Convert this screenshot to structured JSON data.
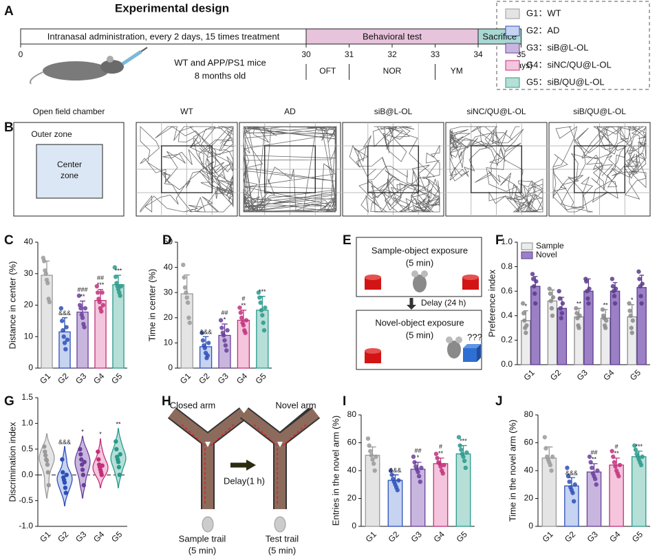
{
  "panel_labels": [
    "A",
    "B",
    "C",
    "D",
    "E",
    "F",
    "G",
    "H",
    "I",
    "J"
  ],
  "design": {
    "title": "Experimental design",
    "segments": [
      {
        "label": "Intranasal administration, every 2 days, 15 times treatment",
        "start": 0,
        "end": 30,
        "color": "#ffffff"
      },
      {
        "label": "Behavioral test",
        "start": 30,
        "end": 34,
        "color": "#e8c3dc"
      },
      {
        "label": "Sacrifice",
        "start": 34,
        "end": 35,
        "color": "#a9d8d3"
      }
    ],
    "ticks": [
      0,
      30,
      31,
      32,
      33,
      34,
      35
    ],
    "unit": "(days)",
    "tests": [
      {
        "label": "OFT",
        "start": 30,
        "end": 31
      },
      {
        "label": "NOR",
        "start": 31,
        "end": 33
      },
      {
        "label": "YM",
        "start": 33,
        "end": 34
      }
    ],
    "mice": [
      "WT and APP/PS1 mice",
      "8 months old"
    ]
  },
  "legend": {
    "entries": [
      {
        "label": "G1：WT",
        "color": "#e4e4e4",
        "edge": "#9a9a9a"
      },
      {
        "label": "G2：AD",
        "color": "#c6d3f1",
        "edge": "#2d4fb9"
      },
      {
        "label": "G3：siB@L-OL",
        "color": "#c8b6de",
        "edge": "#6a3e9b"
      },
      {
        "label": "G4：siNC/QU@L-OL",
        "color": "#f4c5dc",
        "edge": "#c1307b"
      },
      {
        "label": "G5：siB/QU@L-OL",
        "color": "#b5dfd7",
        "edge": "#2a998b"
      }
    ]
  },
  "open_field": {
    "chamber": "Open field chamber",
    "outer": "Outer zone",
    "center": [
      "Center",
      "zone"
    ],
    "arenas": [
      "WT",
      "AD",
      "siB@L-OL",
      "siNC/QU@L-OL",
      "siB/QU@L-OL"
    ]
  },
  "novel_object": {
    "sample": "Sample-object exposure",
    "sample_time": "(5 min)",
    "delay": "Delay (24 h)",
    "novel": "Novel-object exposure",
    "novel_time": "(5 min)",
    "question": "???"
  },
  "y_maze": {
    "closed": "Closed arm",
    "novel": "Novel arm",
    "delay": "Delay(1 h)",
    "sample": "Sample trail",
    "sample_time": "(5 min)",
    "test": "Test trail",
    "test_time": "(5 min)"
  },
  "chart_data": [
    {
      "type": "bar",
      "panel": "C",
      "ylabel": "Distance in center (%)",
      "categories": [
        "G1",
        "G2",
        "G3",
        "G4",
        "G5"
      ],
      "values": [
        29.5,
        11.5,
        17.8,
        21.5,
        26.5
      ],
      "errors": [
        4.5,
        4.5,
        3.5,
        3.5,
        3
      ],
      "points": [
        [
          35,
          34,
          31,
          30,
          28,
          27,
          22,
          21
        ],
        [
          19,
          15,
          12,
          10,
          8,
          6,
          13,
          9
        ],
        [
          23,
          20,
          19,
          17,
          16,
          14,
          13,
          19
        ],
        [
          26,
          24,
          22,
          21,
          19,
          18,
          24,
          20
        ],
        [
          32,
          29,
          27,
          26,
          25,
          24,
          23,
          26
        ]
      ],
      "annotations": [
        [],
        [
          "&&&"
        ],
        [
          "###",
          "**"
        ],
        [
          "##",
          "***"
        ],
        [
          "***"
        ]
      ],
      "ylim": [
        0,
        40
      ],
      "yticks": [
        0,
        10,
        20,
        30,
        40
      ]
    },
    {
      "type": "bar",
      "panel": "D",
      "ylabel": "Time in center (%)",
      "categories": [
        "G1",
        "G2",
        "G3",
        "G4",
        "G5"
      ],
      "values": [
        29.5,
        8.5,
        13,
        19,
        23
      ],
      "errors": [
        7.5,
        4,
        4.5,
        4,
        5.5
      ],
      "points": [
        [
          41,
          36,
          32,
          30,
          28,
          26,
          20,
          18
        ],
        [
          14,
          11,
          9,
          8,
          6,
          4,
          5,
          10
        ],
        [
          19,
          16,
          14,
          13,
          11,
          9,
          7,
          15
        ],
        [
          24,
          22,
          20,
          18,
          17,
          15,
          14,
          19
        ],
        [
          30,
          28,
          26,
          23,
          21,
          18,
          15,
          24
        ]
      ],
      "annotations": [
        [],
        [
          "&&&"
        ],
        [
          "##",
          "*"
        ],
        [
          "#",
          "**"
        ],
        [
          "***"
        ]
      ],
      "ylim": [
        0,
        50
      ],
      "yticks": [
        0,
        10,
        20,
        30,
        40,
        50
      ]
    },
    {
      "type": "grouped_bar",
      "panel": "F",
      "ylabel": "Preference index",
      "categories": [
        "G1",
        "G2",
        "G3",
        "G4",
        "G5"
      ],
      "legend": "upper left",
      "series": [
        {
          "name": "Sample",
          "color": "#ececec",
          "edge": "#8a8a8a",
          "values": [
            0.36,
            0.52,
            0.39,
            0.38,
            0.39
          ],
          "errors": [
            0.08,
            0.09,
            0.07,
            0.07,
            0.1
          ],
          "points": [
            [
              0.5,
              0.42,
              0.36,
              0.3,
              0.26,
              0.32
            ],
            [
              0.62,
              0.58,
              0.52,
              0.46,
              0.4,
              0.55
            ],
            [
              0.46,
              0.42,
              0.38,
              0.32,
              0.3,
              0.4
            ],
            [
              0.45,
              0.4,
              0.38,
              0.32,
              0.3,
              0.36
            ],
            [
              0.5,
              0.44,
              0.4,
              0.3,
              0.26,
              0.36
            ]
          ],
          "annotations": [
            [
              "*"
            ],
            [],
            [
              "**"
            ],
            [
              "**"
            ],
            [
              "*"
            ]
          ]
        },
        {
          "name": "Novel",
          "color": "#9c80c6",
          "edge": "#5a3a8d",
          "values": [
            0.64,
            0.46,
            0.6,
            0.6,
            0.63
          ],
          "errors": [
            0.08,
            0.09,
            0.1,
            0.07,
            0.1
          ],
          "points": [
            [
              0.74,
              0.7,
              0.64,
              0.58,
              0.5,
              0.68
            ],
            [
              0.6,
              0.54,
              0.46,
              0.38,
              0.42,
              0.5
            ],
            [
              0.7,
              0.68,
              0.6,
              0.54,
              0.5,
              0.62
            ],
            [
              0.7,
              0.64,
              0.6,
              0.56,
              0.5,
              0.62
            ],
            [
              0.76,
              0.7,
              0.64,
              0.56,
              0.5,
              0.66
            ]
          ],
          "annotations": [
            [],
            [],
            [],
            [],
            []
          ]
        }
      ],
      "ylim": [
        0,
        1
      ],
      "yticks": [
        {
          "value": 0,
          "label": "0.0"
        },
        0.2,
        0.4,
        0.6,
        0.8,
        {
          "value": 1,
          "label": "1.0"
        }
      ]
    },
    {
      "type": "violin",
      "panel": "G",
      "ylabel": "Discrimination index",
      "categories": [
        "G1",
        "G2",
        "G3",
        "G4",
        "G5"
      ],
      "points": [
        [
          0.55,
          0.45,
          0.38,
          0.3,
          0.28,
          0.2,
          0.05,
          -0.2
        ],
        [
          0.3,
          0.05,
          -0.05,
          -0.1,
          -0.15,
          -0.25,
          -0.35,
          0.0
        ],
        [
          0.5,
          0.4,
          0.3,
          0.2,
          0.1,
          0.0,
          -0.2,
          0.25
        ],
        [
          0.45,
          0.3,
          0.2,
          0.15,
          0.1,
          0.05,
          0.0,
          0.18
        ],
        [
          0.65,
          0.5,
          0.35,
          0.3,
          0.25,
          0.15,
          0.0,
          0.4
        ]
      ],
      "annotations": [
        [],
        [
          "&&&"
        ],
        [
          "*"
        ],
        [
          "*"
        ],
        [
          "**"
        ]
      ],
      "reference_line": 0,
      "ylim": [
        -1,
        1.5
      ],
      "yticks": [
        {
          "value": -1,
          "label": "-1.0"
        },
        -0.5,
        {
          "value": 0,
          "label": "0.0"
        },
        0.5,
        {
          "value": 1,
          "label": "1.0"
        },
        1.5
      ]
    },
    {
      "type": "bar",
      "panel": "I",
      "ylabel": "Entries in the novel arm (%)",
      "categories": [
        "G1",
        "G2",
        "G3",
        "G4",
        "G5"
      ],
      "values": [
        51,
        33,
        41,
        45,
        52
      ],
      "errors": [
        6,
        4,
        5,
        4,
        6
      ],
      "points": [
        [
          63,
          58,
          54,
          51,
          48,
          45,
          40,
          50
        ],
        [
          40,
          37,
          34,
          32,
          30,
          28,
          26,
          33
        ],
        [
          50,
          46,
          43,
          41,
          39,
          36,
          32,
          42
        ],
        [
          52,
          49,
          46,
          45,
          43,
          40,
          38,
          44
        ],
        [
          64,
          58,
          55,
          52,
          50,
          47,
          42,
          53
        ]
      ],
      "annotations": [
        [],
        [
          "&&&"
        ],
        [
          "##",
          "*"
        ],
        [
          "#",
          "**"
        ],
        [
          "***"
        ]
      ],
      "ylim": [
        0,
        80
      ],
      "yticks": [
        0,
        20,
        40,
        60,
        80
      ]
    },
    {
      "type": "bar",
      "panel": "J",
      "ylabel": "Time in the novel arm (%)",
      "categories": [
        "G1",
        "G2",
        "G3",
        "G4",
        "G5"
      ],
      "values": [
        49,
        29,
        39,
        44,
        50
      ],
      "errors": [
        8,
        6,
        6,
        5,
        4
      ],
      "points": [
        [
          64,
          56,
          50,
          48,
          46,
          44,
          40,
          50
        ],
        [
          42,
          36,
          32,
          28,
          26,
          24,
          18,
          30
        ],
        [
          50,
          46,
          42,
          38,
          36,
          34,
          30,
          40
        ],
        [
          54,
          50,
          46,
          43,
          40,
          38,
          36,
          44
        ],
        [
          58,
          55,
          52,
          50,
          48,
          46,
          44,
          50
        ]
      ],
      "annotations": [
        [],
        [
          "&&&"
        ],
        [
          "##",
          "**"
        ],
        [
          "#",
          "**"
        ],
        [
          "***"
        ]
      ],
      "ylim": [
        0,
        80
      ],
      "yticks": [
        0,
        20,
        40,
        60,
        80
      ]
    }
  ]
}
